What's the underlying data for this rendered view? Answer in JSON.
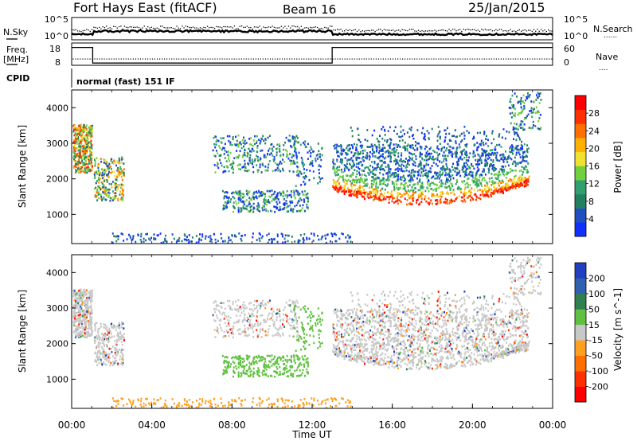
{
  "header": {
    "station": "Fort Hays East (fitACF)",
    "beam": "Beam 16",
    "date": "25/Jan/2015"
  },
  "noise_panel": {
    "left_label": "N.Sky",
    "right_label": "N.Search",
    "left_ticks": [
      "10^5",
      "10^0"
    ],
    "right_ticks": [
      "10^5",
      "10^0"
    ],
    "legend_marker": "......"
  },
  "freq_panel": {
    "left_label_1": "Freq.",
    "left_label_2": "[MHz]",
    "right_label": "Nave",
    "left_ticks": [
      "18",
      "8"
    ],
    "right_ticks": [
      "60",
      "0"
    ],
    "legend_marker": "....",
    "freq_steps": [
      {
        "t": 0,
        "f": 16
      },
      {
        "t": 1.05,
        "f": 9
      },
      {
        "t": 13.0,
        "f": 16
      },
      {
        "t": 24,
        "f": 16
      }
    ]
  },
  "cpid_panel": {
    "label": "CPID",
    "text": "normal (fast) 151 IF"
  },
  "chart_data": [
    {
      "type": "heatmap",
      "name": "power",
      "ylabel": "Slant Range [km]",
      "y_ticks": [
        "1000",
        "2000",
        "3000",
        "4000"
      ],
      "ylim": [
        180,
        4500
      ],
      "xlim": [
        0,
        24
      ],
      "colorbar_label": "Power [dB]",
      "colorbar_ticks": [
        "4",
        "8",
        "12",
        "16",
        "20",
        "24",
        "28"
      ],
      "colorbar_range": [
        0,
        32
      ],
      "colors": [
        "#1030ff",
        "#2050c0",
        "#208060",
        "#30a070",
        "#70d040",
        "#f0e030",
        "#ffb000",
        "#ff7000",
        "#ff3000",
        "#ff0000"
      ]
    },
    {
      "type": "heatmap",
      "name": "velocity",
      "ylabel": "Slant Range [km]",
      "y_ticks": [
        "1000",
        "2000",
        "3000",
        "4000"
      ],
      "ylim": [
        180,
        4500
      ],
      "xlim": [
        0,
        24
      ],
      "x_ticks": [
        "00:00",
        "04:00",
        "08:00",
        "12:00",
        "16:00",
        "20:00",
        "00:00"
      ],
      "xlabel": "Time UT",
      "colorbar_label": "Velocity [m s^-1]",
      "colorbar_ticks": [
        "200",
        "100",
        "50",
        "15",
        "-15",
        "-50",
        "-100",
        "-200"
      ],
      "colors": [
        "#2040c0",
        "#3060b0",
        "#308050",
        "#60c040",
        "#c8c8c8",
        "#ffa020",
        "#ff7000",
        "#ff3000",
        "#ff0000"
      ]
    }
  ]
}
